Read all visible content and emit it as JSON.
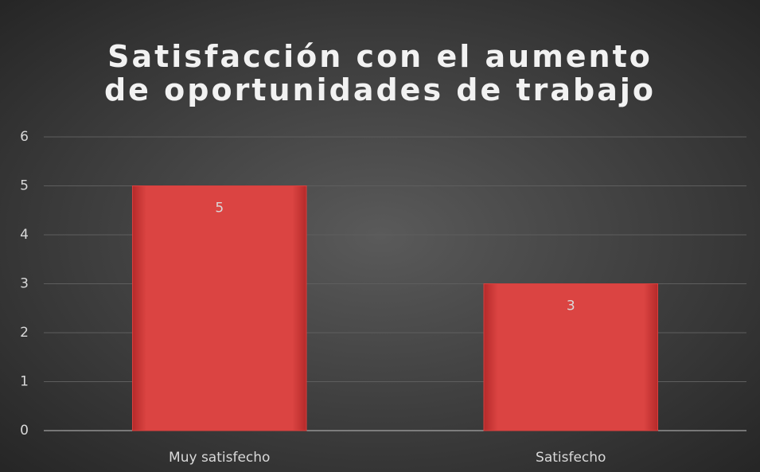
{
  "chart_data": {
    "type": "bar",
    "title": "Satisfacción con el aumento de oportunidades de trabajo",
    "categories": [
      "Muy satisfecho",
      "Satisfecho"
    ],
    "values": [
      5,
      3
    ],
    "color": "#d9403e",
    "ylim": [
      0,
      6
    ],
    "yticks": [
      0,
      1,
      2,
      3,
      4,
      5,
      6
    ],
    "grid": true,
    "data_labels": true
  }
}
